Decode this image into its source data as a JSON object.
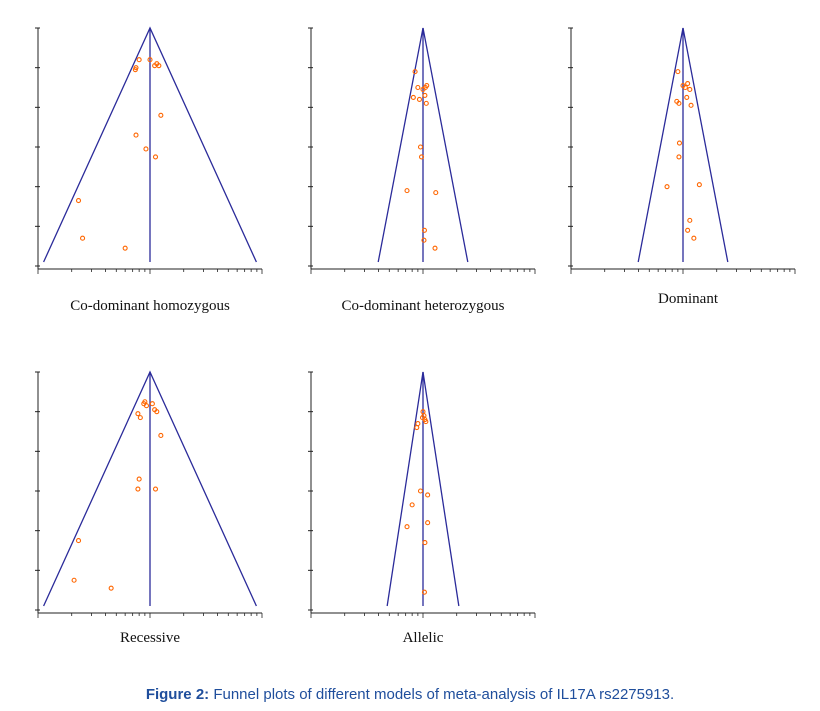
{
  "figure": {
    "caption_label": "Figure 2:",
    "caption_text": "Funnel plots of different models of meta-analysis of IL17A rs2275913."
  },
  "colors": {
    "funnel": "#2b2b9a",
    "axis": "#222222",
    "point": "#ff6600"
  },
  "chart_data": [
    {
      "type": "scatter",
      "title": "Co-dominant homozygous",
      "x_scale": "log",
      "xlim": [
        0.1,
        10
      ],
      "ylim": [
        0,
        1.2
      ],
      "center": 1,
      "points": [
        {
          "x": 0.8,
          "y": 1.04
        },
        {
          "x": 0.75,
          "y": 1.0
        },
        {
          "x": 0.74,
          "y": 0.99
        },
        {
          "x": 1.0,
          "y": 1.04
        },
        {
          "x": 1.1,
          "y": 1.01
        },
        {
          "x": 1.15,
          "y": 1.02
        },
        {
          "x": 1.2,
          "y": 1.01
        },
        {
          "x": 1.25,
          "y": 0.76
        },
        {
          "x": 0.75,
          "y": 0.66
        },
        {
          "x": 0.92,
          "y": 0.59
        },
        {
          "x": 1.12,
          "y": 0.55
        },
        {
          "x": 0.23,
          "y": 0.33
        },
        {
          "x": 0.25,
          "y": 0.14
        },
        {
          "x": 0.6,
          "y": 0.09
        }
      ]
    },
    {
      "type": "scatter",
      "title": "Co-dominant heterozygous",
      "x_scale": "log",
      "xlim": [
        0.1,
        10
      ],
      "ylim": [
        0,
        1.2
      ],
      "center": 1,
      "points": [
        {
          "x": 0.85,
          "y": 0.98
        },
        {
          "x": 0.9,
          "y": 0.9
        },
        {
          "x": 1.0,
          "y": 0.89
        },
        {
          "x": 1.05,
          "y": 0.9
        },
        {
          "x": 1.08,
          "y": 0.91
        },
        {
          "x": 0.82,
          "y": 0.85
        },
        {
          "x": 0.93,
          "y": 0.84
        },
        {
          "x": 1.04,
          "y": 0.86
        },
        {
          "x": 1.07,
          "y": 0.82
        },
        {
          "x": 0.95,
          "y": 0.6
        },
        {
          "x": 0.97,
          "y": 0.55
        },
        {
          "x": 0.72,
          "y": 0.38
        },
        {
          "x": 1.3,
          "y": 0.37
        },
        {
          "x": 1.03,
          "y": 0.18
        },
        {
          "x": 1.02,
          "y": 0.13
        },
        {
          "x": 1.28,
          "y": 0.09
        }
      ]
    },
    {
      "type": "scatter",
      "title": "Dominant",
      "x_scale": "log",
      "xlim": [
        0.1,
        10
      ],
      "ylim": [
        0,
        1.2
      ],
      "center": 1,
      "points": [
        {
          "x": 0.9,
          "y": 0.98
        },
        {
          "x": 1.0,
          "y": 0.91
        },
        {
          "x": 1.05,
          "y": 0.9
        },
        {
          "x": 1.1,
          "y": 0.92
        },
        {
          "x": 1.15,
          "y": 0.89
        },
        {
          "x": 0.88,
          "y": 0.83
        },
        {
          "x": 0.92,
          "y": 0.82
        },
        {
          "x": 1.08,
          "y": 0.85
        },
        {
          "x": 1.18,
          "y": 0.81
        },
        {
          "x": 0.93,
          "y": 0.62
        },
        {
          "x": 0.92,
          "y": 0.55
        },
        {
          "x": 0.72,
          "y": 0.4
        },
        {
          "x": 1.4,
          "y": 0.41
        },
        {
          "x": 1.15,
          "y": 0.23
        },
        {
          "x": 1.1,
          "y": 0.18
        },
        {
          "x": 1.25,
          "y": 0.14
        }
      ]
    },
    {
      "type": "scatter",
      "title": "Recessive",
      "x_scale": "log",
      "xlim": [
        0.1,
        10
      ],
      "ylim": [
        0,
        1.2
      ],
      "center": 1,
      "points": [
        {
          "x": 0.88,
          "y": 1.04
        },
        {
          "x": 0.9,
          "y": 1.05
        },
        {
          "x": 0.93,
          "y": 1.03
        },
        {
          "x": 1.05,
          "y": 1.04
        },
        {
          "x": 1.1,
          "y": 1.01
        },
        {
          "x": 1.15,
          "y": 1.0
        },
        {
          "x": 0.78,
          "y": 0.99
        },
        {
          "x": 0.82,
          "y": 0.97
        },
        {
          "x": 1.25,
          "y": 0.88
        },
        {
          "x": 0.8,
          "y": 0.66
        },
        {
          "x": 0.78,
          "y": 0.61
        },
        {
          "x": 1.12,
          "y": 0.61
        },
        {
          "x": 0.23,
          "y": 0.35
        },
        {
          "x": 0.21,
          "y": 0.15
        },
        {
          "x": 0.45,
          "y": 0.11
        }
      ]
    },
    {
      "type": "scatter",
      "title": "Allelic",
      "x_scale": "log",
      "xlim": [
        0.1,
        10
      ],
      "ylim": [
        0,
        1.2
      ],
      "center": 1,
      "points": [
        {
          "x": 1.0,
          "y": 1.0
        },
        {
          "x": 1.02,
          "y": 0.98
        },
        {
          "x": 0.99,
          "y": 0.97
        },
        {
          "x": 1.04,
          "y": 0.96
        },
        {
          "x": 1.06,
          "y": 0.95
        },
        {
          "x": 0.9,
          "y": 0.94
        },
        {
          "x": 0.88,
          "y": 0.92
        },
        {
          "x": 0.95,
          "y": 0.6
        },
        {
          "x": 1.1,
          "y": 0.58
        },
        {
          "x": 0.8,
          "y": 0.53
        },
        {
          "x": 1.1,
          "y": 0.44
        },
        {
          "x": 0.72,
          "y": 0.42
        },
        {
          "x": 1.04,
          "y": 0.34
        },
        {
          "x": 1.03,
          "y": 0.09
        }
      ]
    }
  ]
}
